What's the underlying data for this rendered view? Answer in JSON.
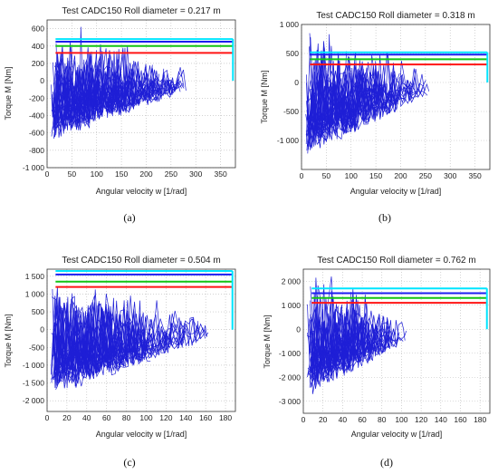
{
  "chart_data": [
    {
      "type": "line",
      "title": "Test  CADC150  Roll diameter =  0.217  m",
      "xlabel": "Angular velocity w [1/rad]",
      "ylabel": "Torque M [Nm]",
      "panel_label": "(a)",
      "xlim": [
        0,
        380
      ],
      "ylim": [
        -1000,
        700
      ],
      "xticks": [
        "0",
        "50",
        "100",
        "150",
        "200",
        "250",
        "300",
        "350"
      ],
      "xtick_values": [
        0,
        50,
        100,
        150,
        200,
        250,
        300,
        350
      ],
      "yticks": [
        "-1 000",
        "-800",
        "-600",
        "-400",
        "-200",
        "0",
        "200",
        "400",
        "600"
      ],
      "ytick_values": [
        -1000,
        -800,
        -600,
        -400,
        -200,
        0,
        200,
        400,
        600
      ],
      "grid": true,
      "scatter_x_end": 290,
      "scatter_y_min": -800,
      "scatter_y_max": 680,
      "limit_lines": [
        {
          "color": "#00e5ff",
          "y": 480,
          "x_end": 375
        },
        {
          "color": "#1c1cf0",
          "y": 450,
          "x_end": 375
        },
        {
          "color": "#13c413",
          "y": 400,
          "x_end": 375
        },
        {
          "color": "#ff1414",
          "y": 320,
          "x_end": 375
        }
      ],
      "cyan_drop_to": 0
    },
    {
      "type": "line",
      "title": "Test  CADC150  Roll diameter =  0.318  m",
      "xlabel": "Angular velocity w [1/rad]",
      "ylabel": "Torque M [Nm]",
      "panel_label": "(b)",
      "xlim": [
        0,
        380
      ],
      "ylim": [
        -1500,
        1000
      ],
      "xticks": [
        "0",
        "50",
        "100",
        "150",
        "200",
        "250",
        "300",
        "350"
      ],
      "xtick_values": [
        0,
        50,
        100,
        150,
        200,
        250,
        300,
        350
      ],
      "yticks": [
        "-1 000",
        "-500",
        "0",
        "500",
        "1 000"
      ],
      "ytick_values": [
        -1000,
        -500,
        0,
        500,
        1000
      ],
      "grid": true,
      "scatter_x_end": 265,
      "scatter_y_min": -1450,
      "scatter_y_max": 950,
      "limit_lines": [
        {
          "color": "#00e5ff",
          "y": 520,
          "x_end": 375
        },
        {
          "color": "#1c1cf0",
          "y": 480,
          "x_end": 375
        },
        {
          "color": "#13c413",
          "y": 400,
          "x_end": 375
        },
        {
          "color": "#ff1414",
          "y": 310,
          "x_end": 375
        }
      ],
      "cyan_drop_to": 0
    },
    {
      "type": "line",
      "title": "Test  CADC150  Roll diameter =  0.504  m",
      "xlabel": "Angular velocity w [1/rad]",
      "ylabel": "Torque M [Nm]",
      "panel_label": "(c)",
      "xlim": [
        0,
        190
      ],
      "ylim": [
        -2300,
        1700
      ],
      "xticks": [
        "0",
        "20",
        "40",
        "60",
        "80",
        "100",
        "120",
        "140",
        "160",
        "180"
      ],
      "xtick_values": [
        0,
        20,
        40,
        60,
        80,
        100,
        120,
        140,
        160,
        180
      ],
      "yticks": [
        "-2 000",
        "-1 500",
        "-1 000",
        "-500",
        "0",
        "500",
        "1 000",
        "1 500"
      ],
      "ytick_values": [
        -2000,
        -1500,
        -1000,
        -500,
        0,
        500,
        1000,
        1500
      ],
      "grid": true,
      "scatter_x_end": 165,
      "scatter_y_min": -2150,
      "scatter_y_max": 1650,
      "limit_lines": [
        {
          "color": "#00e5ff",
          "y": 1650,
          "x_end": 187
        },
        {
          "color": "#1c1cf0",
          "y": 1550,
          "x_end": 187
        },
        {
          "color": "#13c413",
          "y": 1350,
          "x_end": 187
        },
        {
          "color": "#ff1414",
          "y": 1200,
          "x_end": 187
        }
      ],
      "cyan_drop_to": 0
    },
    {
      "type": "line",
      "title": "Test  CADC150  Roll diameter =  0.762  m",
      "xlabel": "Angular velocity w [1/rad]",
      "ylabel": "Torque M [Nm]",
      "panel_label": "(d)",
      "xlim": [
        0,
        190
      ],
      "ylim": [
        -3500,
        2500
      ],
      "xticks": [
        "0",
        "20",
        "40",
        "60",
        "80",
        "100",
        "120",
        "140",
        "160",
        "180"
      ],
      "xtick_values": [
        0,
        20,
        40,
        60,
        80,
        100,
        120,
        140,
        160,
        180
      ],
      "yticks": [
        "-3 000",
        "-2 000",
        "-1 000",
        "0",
        "1 000",
        "2 000"
      ],
      "ytick_values": [
        -3000,
        -2000,
        -1000,
        0,
        1000,
        2000
      ],
      "grid": true,
      "scatter_x_end": 110,
      "scatter_y_min": -3200,
      "scatter_y_max": 2400,
      "limit_lines": [
        {
          "color": "#00e5ff",
          "y": 1700,
          "x_end": 187
        },
        {
          "color": "#1c1cf0",
          "y": 1500,
          "x_end": 187
        },
        {
          "color": "#13c413",
          "y": 1300,
          "x_end": 187
        },
        {
          "color": "#ff1414",
          "y": 1100,
          "x_end": 187
        }
      ],
      "cyan_drop_to": 0
    }
  ]
}
